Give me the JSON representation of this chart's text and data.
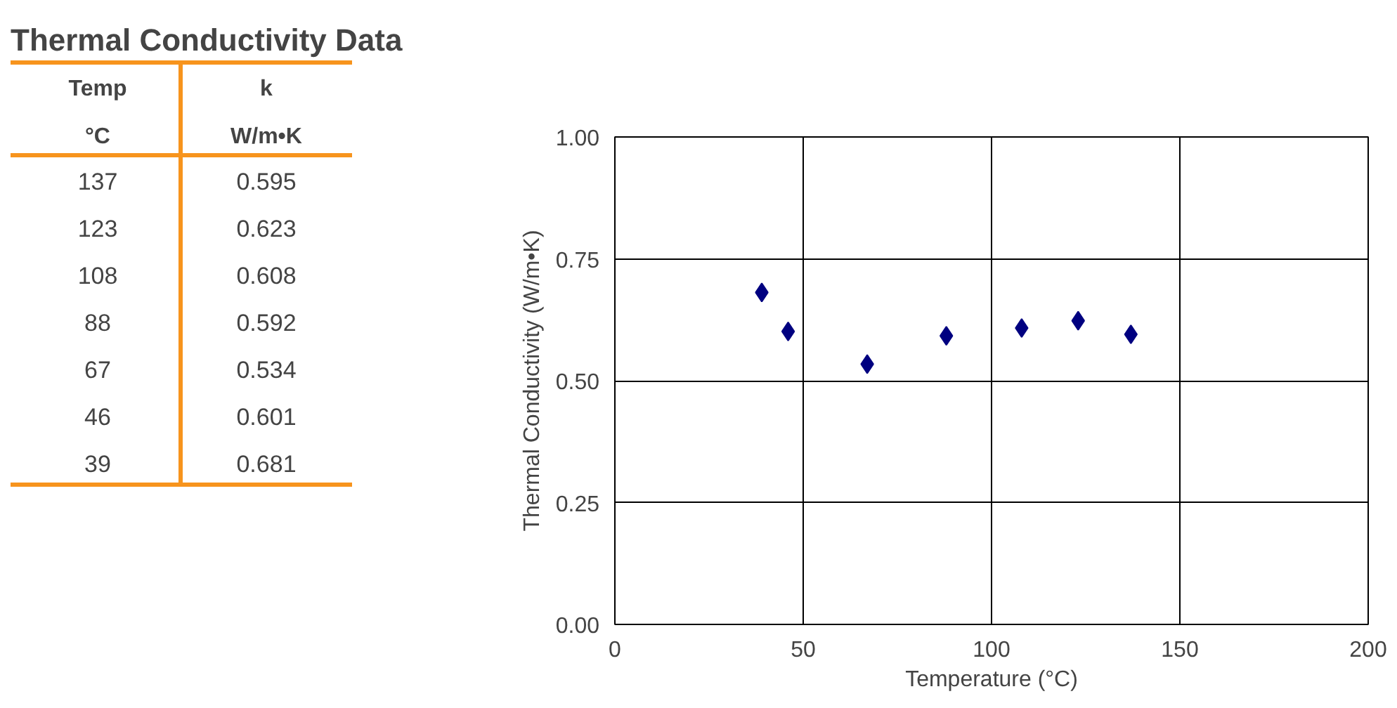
{
  "chart_data": [
    {
      "type": "other",
      "title": "Thermal Conductivity Data",
      "annotations": [
        "Temp",
        "k",
        "°C",
        "W/m•K",
        "137",
        "0.595",
        "123",
        "0.623",
        "108",
        "0.608",
        "88",
        "0.592",
        "67",
        "0.534",
        "46",
        "0.601",
        "39",
        "0.681"
      ]
    },
    {
      "type": "scatter",
      "xlabel": "Temperature (°C)",
      "ylabel": "Thermal Conductivity (W/m•K)",
      "x": [
        137,
        123,
        108,
        88,
        67,
        46,
        39
      ],
      "values": [
        0.595,
        0.623,
        0.608,
        0.592,
        0.534,
        0.601,
        0.681
      ],
      "color": "#000080",
      "marker": "diamond",
      "grid": true,
      "xlim": [
        0,
        200
      ],
      "xticks": [
        0,
        50,
        100,
        150,
        200
      ],
      "ylim": [
        0,
        1
      ],
      "yticks": [
        {
          "value": 0,
          "label": "0.00"
        },
        {
          "value": 0.25,
          "label": "0.25"
        },
        {
          "value": 0.5,
          "label": "0.50"
        },
        {
          "value": 0.75,
          "label": "0.75"
        },
        {
          "value": 1,
          "label": "1.00"
        }
      ]
    }
  ]
}
